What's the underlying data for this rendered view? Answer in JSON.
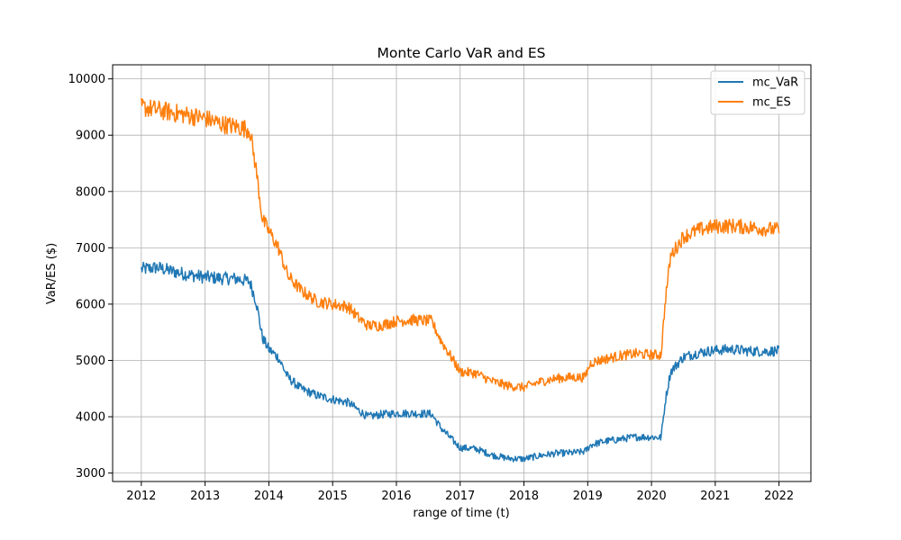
{
  "chart_data": {
    "type": "line",
    "title": "Monte Carlo VaR and ES",
    "xlabel": "range of time (t)",
    "ylabel": "VaR/ES ($)",
    "xlim": [
      2011.55,
      2022.5
    ],
    "ylim": [
      2850,
      10250
    ],
    "x_ticks": [
      "2012",
      "2013",
      "2014",
      "2015",
      "2016",
      "2017",
      "2018",
      "2019",
      "2020",
      "2021",
      "2022"
    ],
    "y_ticks": [
      "3000",
      "4000",
      "5000",
      "6000",
      "7000",
      "8000",
      "9000",
      "10000"
    ],
    "grid": true,
    "legend_position": "top-right",
    "colors": {
      "mc_VaR": "#1f77b4",
      "mc_ES": "#ff7f0e"
    },
    "series": [
      {
        "name": "mc_VaR",
        "color": "#1f77b4",
        "x": [
          2012.0,
          2012.25,
          2012.5,
          2012.75,
          2013.0,
          2013.25,
          2013.5,
          2013.7,
          2013.8,
          2013.9,
          2014.0,
          2014.15,
          2014.3,
          2014.5,
          2014.75,
          2015.0,
          2015.25,
          2015.4,
          2015.55,
          2015.75,
          2016.0,
          2016.25,
          2016.55,
          2016.7,
          2016.85,
          2017.0,
          2017.25,
          2017.5,
          2017.75,
          2018.0,
          2018.25,
          2018.5,
          2018.75,
          2018.95,
          2019.05,
          2019.25,
          2019.5,
          2019.75,
          2020.0,
          2020.15,
          2020.22,
          2020.3,
          2020.5,
          2020.75,
          2021.0,
          2021.25,
          2021.5,
          2021.75,
          2022.0
        ],
        "values": [
          6620,
          6650,
          6580,
          6520,
          6480,
          6460,
          6450,
          6400,
          6050,
          5400,
          5200,
          5050,
          4700,
          4500,
          4380,
          4310,
          4250,
          4120,
          4000,
          4040,
          4060,
          4060,
          4050,
          3800,
          3620,
          3450,
          3430,
          3320,
          3260,
          3250,
          3310,
          3350,
          3360,
          3380,
          3500,
          3560,
          3600,
          3640,
          3640,
          3630,
          4300,
          4800,
          5060,
          5140,
          5180,
          5200,
          5170,
          5160,
          5170
        ]
      },
      {
        "name": "mc_ES",
        "color": "#ff7f0e",
        "x": [
          2012.0,
          2012.25,
          2012.5,
          2012.75,
          2013.0,
          2013.25,
          2013.5,
          2013.7,
          2013.8,
          2013.9,
          2014.0,
          2014.15,
          2014.3,
          2014.5,
          2014.75,
          2015.0,
          2015.25,
          2015.4,
          2015.55,
          2015.75,
          2016.0,
          2016.25,
          2016.55,
          2016.7,
          2016.85,
          2017.0,
          2017.25,
          2017.5,
          2017.75,
          2018.0,
          2018.25,
          2018.5,
          2018.75,
          2018.95,
          2019.05,
          2019.25,
          2019.5,
          2019.75,
          2020.0,
          2020.15,
          2020.22,
          2020.3,
          2020.5,
          2020.75,
          2021.0,
          2021.25,
          2021.5,
          2021.75,
          2022.0
        ],
        "values": [
          9500,
          9450,
          9400,
          9350,
          9300,
          9200,
          9150,
          9100,
          8400,
          7500,
          7300,
          7000,
          6500,
          6250,
          6050,
          6000,
          5950,
          5760,
          5620,
          5620,
          5700,
          5720,
          5700,
          5350,
          5080,
          4800,
          4770,
          4630,
          4550,
          4520,
          4620,
          4680,
          4700,
          4700,
          4960,
          5020,
          5080,
          5120,
          5100,
          5100,
          6100,
          6850,
          7200,
          7320,
          7380,
          7390,
          7370,
          7340,
          7320
        ]
      }
    ]
  }
}
